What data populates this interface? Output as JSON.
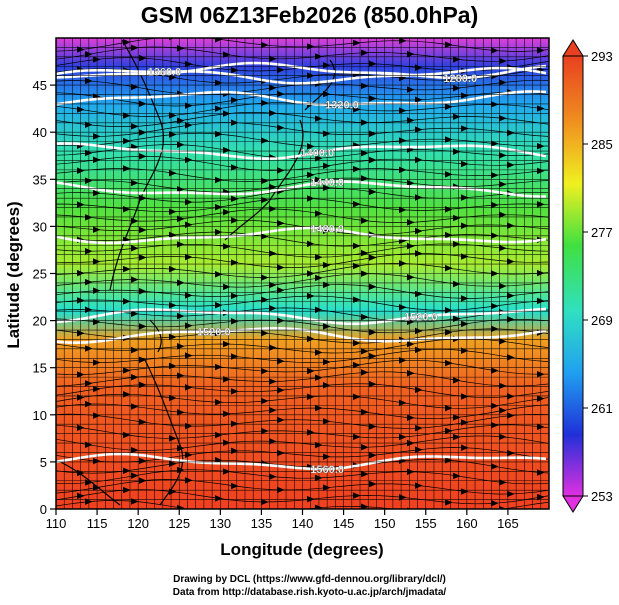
{
  "title": "GSM 06Z13Feb2026 (850.0hPa)",
  "x_axis": {
    "label": "Longitude (degrees)",
    "range": [
      110,
      170
    ],
    "ticks": [
      "110",
      "115",
      "120",
      "125",
      "130",
      "135",
      "140",
      "145",
      "150",
      "155",
      "160",
      "165"
    ]
  },
  "y_axis": {
    "label": "Latitude  (degrees)",
    "range": [
      0,
      50
    ],
    "ticks": [
      "0",
      "5",
      "10",
      "15",
      "20",
      "25",
      "30",
      "35",
      "40",
      "45"
    ]
  },
  "colorbar": {
    "range": [
      253,
      293
    ],
    "ticks": [
      "293",
      "285",
      "277",
      "269",
      "261",
      "253"
    ],
    "colors": [
      "#e030e0",
      "#2030d8",
      "#20a0f0",
      "#30e0c0",
      "#40e040",
      "#f0f020",
      "#f09020",
      "#e84020"
    ]
  },
  "contours": [
    {
      "label": "1280.0",
      "lat": 46.5
    },
    {
      "label": "1320.0",
      "lat": 43.5
    },
    {
      "label": "1360.0",
      "lat": 46
    },
    {
      "label": "1400.0",
      "lat": 38
    },
    {
      "label": "1440.0",
      "lat": 34
    },
    {
      "label": "1480.0",
      "lat": 29
    },
    {
      "label": "1520.0",
      "lat": 18.5
    },
    {
      "label": "1520.0",
      "lat": 20.5
    },
    {
      "label": "1560.0",
      "lat": 5
    }
  ],
  "credits": {
    "line1": "Drawing by DCL (https://www.gfd-dennou.org/library/dcl/)",
    "line2": "Data from http://database.rish.kyoto-u.ac.jp/arch/jmadata/"
  }
}
